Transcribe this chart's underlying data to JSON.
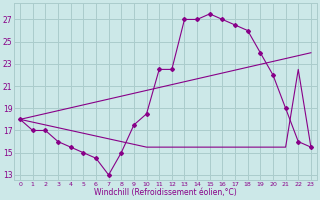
{
  "x": [
    0,
    1,
    2,
    3,
    4,
    5,
    6,
    7,
    8,
    9,
    10,
    11,
    12,
    13,
    14,
    15,
    16,
    17,
    18,
    19,
    20,
    21,
    22,
    23
  ],
  "windchill": [
    18,
    17,
    17,
    16,
    15.5,
    15,
    14.5,
    13,
    15,
    17.5,
    18.5,
    22.5,
    22.5,
    27,
    27,
    27.5,
    27,
    26.5,
    26,
    24,
    22,
    19,
    16,
    15.5
  ],
  "line1_x": [
    0,
    23
  ],
  "line1_y": [
    18,
    24
  ],
  "line2_x": [
    0,
    10,
    21,
    22,
    23
  ],
  "line2_y": [
    18,
    15.5,
    15.5,
    22.5,
    15.5
  ],
  "color": "#880088",
  "bg_color": "#cce8e8",
  "grid_color": "#aacccc",
  "ylabel_values": [
    13,
    15,
    17,
    19,
    21,
    23,
    25,
    27
  ],
  "xlabel": "Windchill (Refroidissement éolien,°C)",
  "ylim": [
    12.5,
    28.5
  ],
  "xlim": [
    -0.5,
    23.5
  ],
  "xticks": [
    0,
    1,
    2,
    3,
    4,
    5,
    6,
    7,
    8,
    9,
    10,
    11,
    12,
    13,
    14,
    15,
    16,
    17,
    18,
    19,
    20,
    21,
    22,
    23
  ]
}
